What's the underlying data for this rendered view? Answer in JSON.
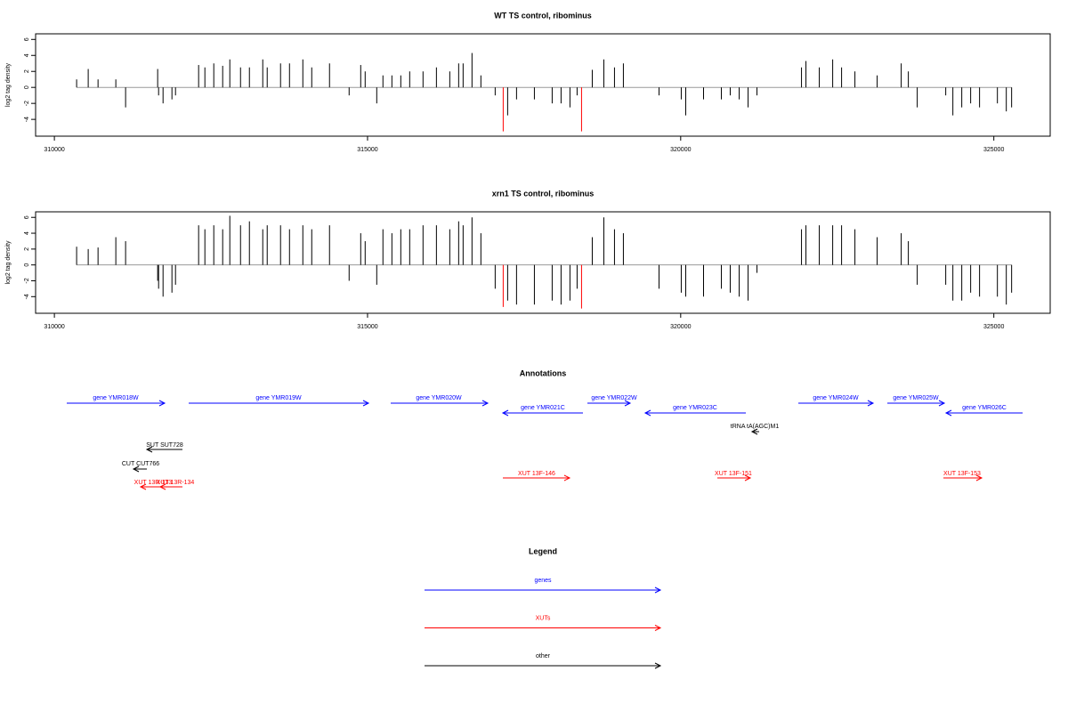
{
  "chart_data": [
    {
      "type": "bar",
      "title": "WT TS control, ribominus",
      "ylabel": "log2 tag density",
      "xlim": [
        309700,
        325900
      ],
      "ylim": [
        -6.1,
        6.7
      ],
      "xticks": [
        310000,
        315000,
        320000,
        325000
      ],
      "yticks": [
        -4,
        -2,
        0,
        2,
        4,
        6
      ],
      "series": [
        {
          "color": "#000000",
          "x": [
            310355,
            310540,
            310697,
            310981,
            311137,
            311649,
            311664,
            311735,
            311877,
            311934,
            312303,
            312403,
            312545,
            312687,
            312801,
            312972,
            313114,
            313327,
            313398,
            313611,
            313754,
            313967,
            314109,
            314393,
            314706,
            314891,
            314962,
            315147,
            315246,
            315389,
            315531,
            315673,
            315886,
            316100,
            316313,
            316455,
            316526,
            316668,
            316810,
            317038,
            317237,
            317379,
            317664,
            317948,
            318090,
            318232,
            318346,
            318588,
            318773,
            318943,
            319085,
            319654,
            320009,
            320081,
            320365,
            320649,
            320791,
            320934,
            321076,
            321218,
            321929,
            322000,
            322213,
            322427,
            322569,
            322782,
            323137,
            323521,
            323635,
            323777,
            324232,
            324346,
            324488,
            324630,
            324772,
            325057,
            325199,
            325284
          ],
          "values": [
            1,
            2.3,
            1,
            1,
            -2.5,
            2.3,
            -1,
            -2,
            -1.5,
            -1,
            2.8,
            2.5,
            3,
            2.7,
            3.5,
            2.5,
            2.5,
            3.5,
            2.5,
            3,
            3,
            3.5,
            2.5,
            3,
            -1,
            2.8,
            2,
            -2,
            1.5,
            1.5,
            1.5,
            2,
            2,
            2.5,
            2,
            3,
            3,
            4.3,
            1.5,
            -1,
            -3.5,
            -1.5,
            -1.5,
            -2,
            -2,
            -2.5,
            -1,
            2.2,
            3.5,
            2.5,
            3,
            -1,
            -1.5,
            -3.5,
            -1.5,
            -1.5,
            -1,
            -1.5,
            -2.5,
            -1,
            2.5,
            3.3,
            2.5,
            3.5,
            2.5,
            2,
            1.5,
            3,
            2,
            -2.5,
            -1,
            -3.5,
            -2.5,
            -2,
            -2.5,
            -2,
            -3,
            -2.5
          ]
        },
        {
          "color": "#ff0000",
          "x": [
            317166,
            318417
          ],
          "values": [
            -5.5,
            -5.5
          ]
        }
      ]
    },
    {
      "type": "bar",
      "title": "xrn1 TS control, ribominus",
      "ylabel": "log2 tag density",
      "xlim": [
        309700,
        325900
      ],
      "ylim": [
        -6.1,
        6.7
      ],
      "xticks": [
        310000,
        315000,
        320000,
        325000
      ],
      "yticks": [
        -4,
        -2,
        0,
        2,
        4,
        6
      ],
      "series": [
        {
          "color": "#000000",
          "x": [
            310355,
            310540,
            310697,
            310981,
            311137,
            311649,
            311664,
            311735,
            311877,
            311934,
            312303,
            312403,
            312545,
            312687,
            312801,
            312972,
            313114,
            313327,
            313398,
            313611,
            313754,
            313967,
            314109,
            314393,
            314706,
            314891,
            314962,
            315147,
            315246,
            315389,
            315531,
            315673,
            315886,
            316100,
            316313,
            316455,
            316526,
            316668,
            316810,
            317038,
            317237,
            317379,
            317664,
            317948,
            318090,
            318232,
            318346,
            318588,
            318773,
            318943,
            319085,
            319654,
            320009,
            320081,
            320365,
            320649,
            320791,
            320934,
            321076,
            321218,
            321929,
            322000,
            322213,
            322427,
            322569,
            322782,
            323137,
            323521,
            323635,
            323777,
            324232,
            324346,
            324488,
            324630,
            324772,
            325057,
            325199,
            325284
          ],
          "values": [
            2.3,
            2,
            2.2,
            3.5,
            3,
            -2,
            -3,
            -4,
            -3.5,
            -2.5,
            5,
            4.5,
            5,
            4.5,
            6.2,
            5,
            5.5,
            4.5,
            5,
            5,
            4.5,
            5,
            4.5,
            5,
            -2,
            4,
            3,
            -2.5,
            4.5,
            4,
            4.5,
            4.5,
            5,
            5,
            4.5,
            5.5,
            5,
            6,
            4,
            -3,
            -4.5,
            -5,
            -5,
            -4.5,
            -5,
            -4.5,
            -3,
            3.5,
            6,
            4.5,
            4,
            -3,
            -3.5,
            -4,
            -4,
            -3,
            -3.5,
            -4,
            -4.5,
            -1,
            4.5,
            5,
            5,
            5,
            5,
            4.5,
            3.5,
            4,
            3,
            -2.5,
            -2.5,
            -4.5,
            -4.5,
            -3.5,
            -4,
            -4,
            -5,
            -3.5
          ]
        },
        {
          "color": "#ff0000",
          "x": [
            317166,
            318417
          ],
          "values": [
            -5.3,
            -5.5
          ]
        }
      ]
    }
  ],
  "annotations": {
    "title": "Annotations",
    "features": [
      {
        "label": "gene YMR018W",
        "color": "#0000ff"
      },
      {
        "label": "gene YMR019W",
        "color": "#0000ff"
      },
      {
        "label": "gene YMR020W",
        "color": "#0000ff"
      },
      {
        "label": "gene YMR021C",
        "color": "#0000ff"
      },
      {
        "label": "gene YMR022W",
        "color": "#0000ff"
      },
      {
        "label": "gene YMR023C",
        "color": "#0000ff"
      },
      {
        "label": "gene YMR024W",
        "color": "#0000ff"
      },
      {
        "label": "gene YMR025W",
        "color": "#0000ff"
      },
      {
        "label": "gene YMR026C",
        "color": "#0000ff"
      },
      {
        "label": "tRNA tA(AGC)M1",
        "color": "#000000"
      },
      {
        "label": "SUT SUT728",
        "color": "#000000"
      },
      {
        "label": "CUT CUT766",
        "color": "#000000"
      },
      {
        "label": "XUT 13R-133",
        "color": "#ff0000"
      },
      {
        "label": "XUT 13R-134",
        "color": "#ff0000"
      },
      {
        "label": "XUT 13F-146",
        "color": "#ff0000"
      },
      {
        "label": "XUT 13F-151",
        "color": "#ff0000"
      },
      {
        "label": "XUT 13F-153",
        "color": "#ff0000"
      }
    ]
  },
  "legend": {
    "title": "Legend",
    "items": [
      {
        "label": "genes",
        "color": "#0000ff"
      },
      {
        "label": "XUTs",
        "color": "#ff0000"
      },
      {
        "label": "other",
        "color": "#000000"
      }
    ]
  }
}
